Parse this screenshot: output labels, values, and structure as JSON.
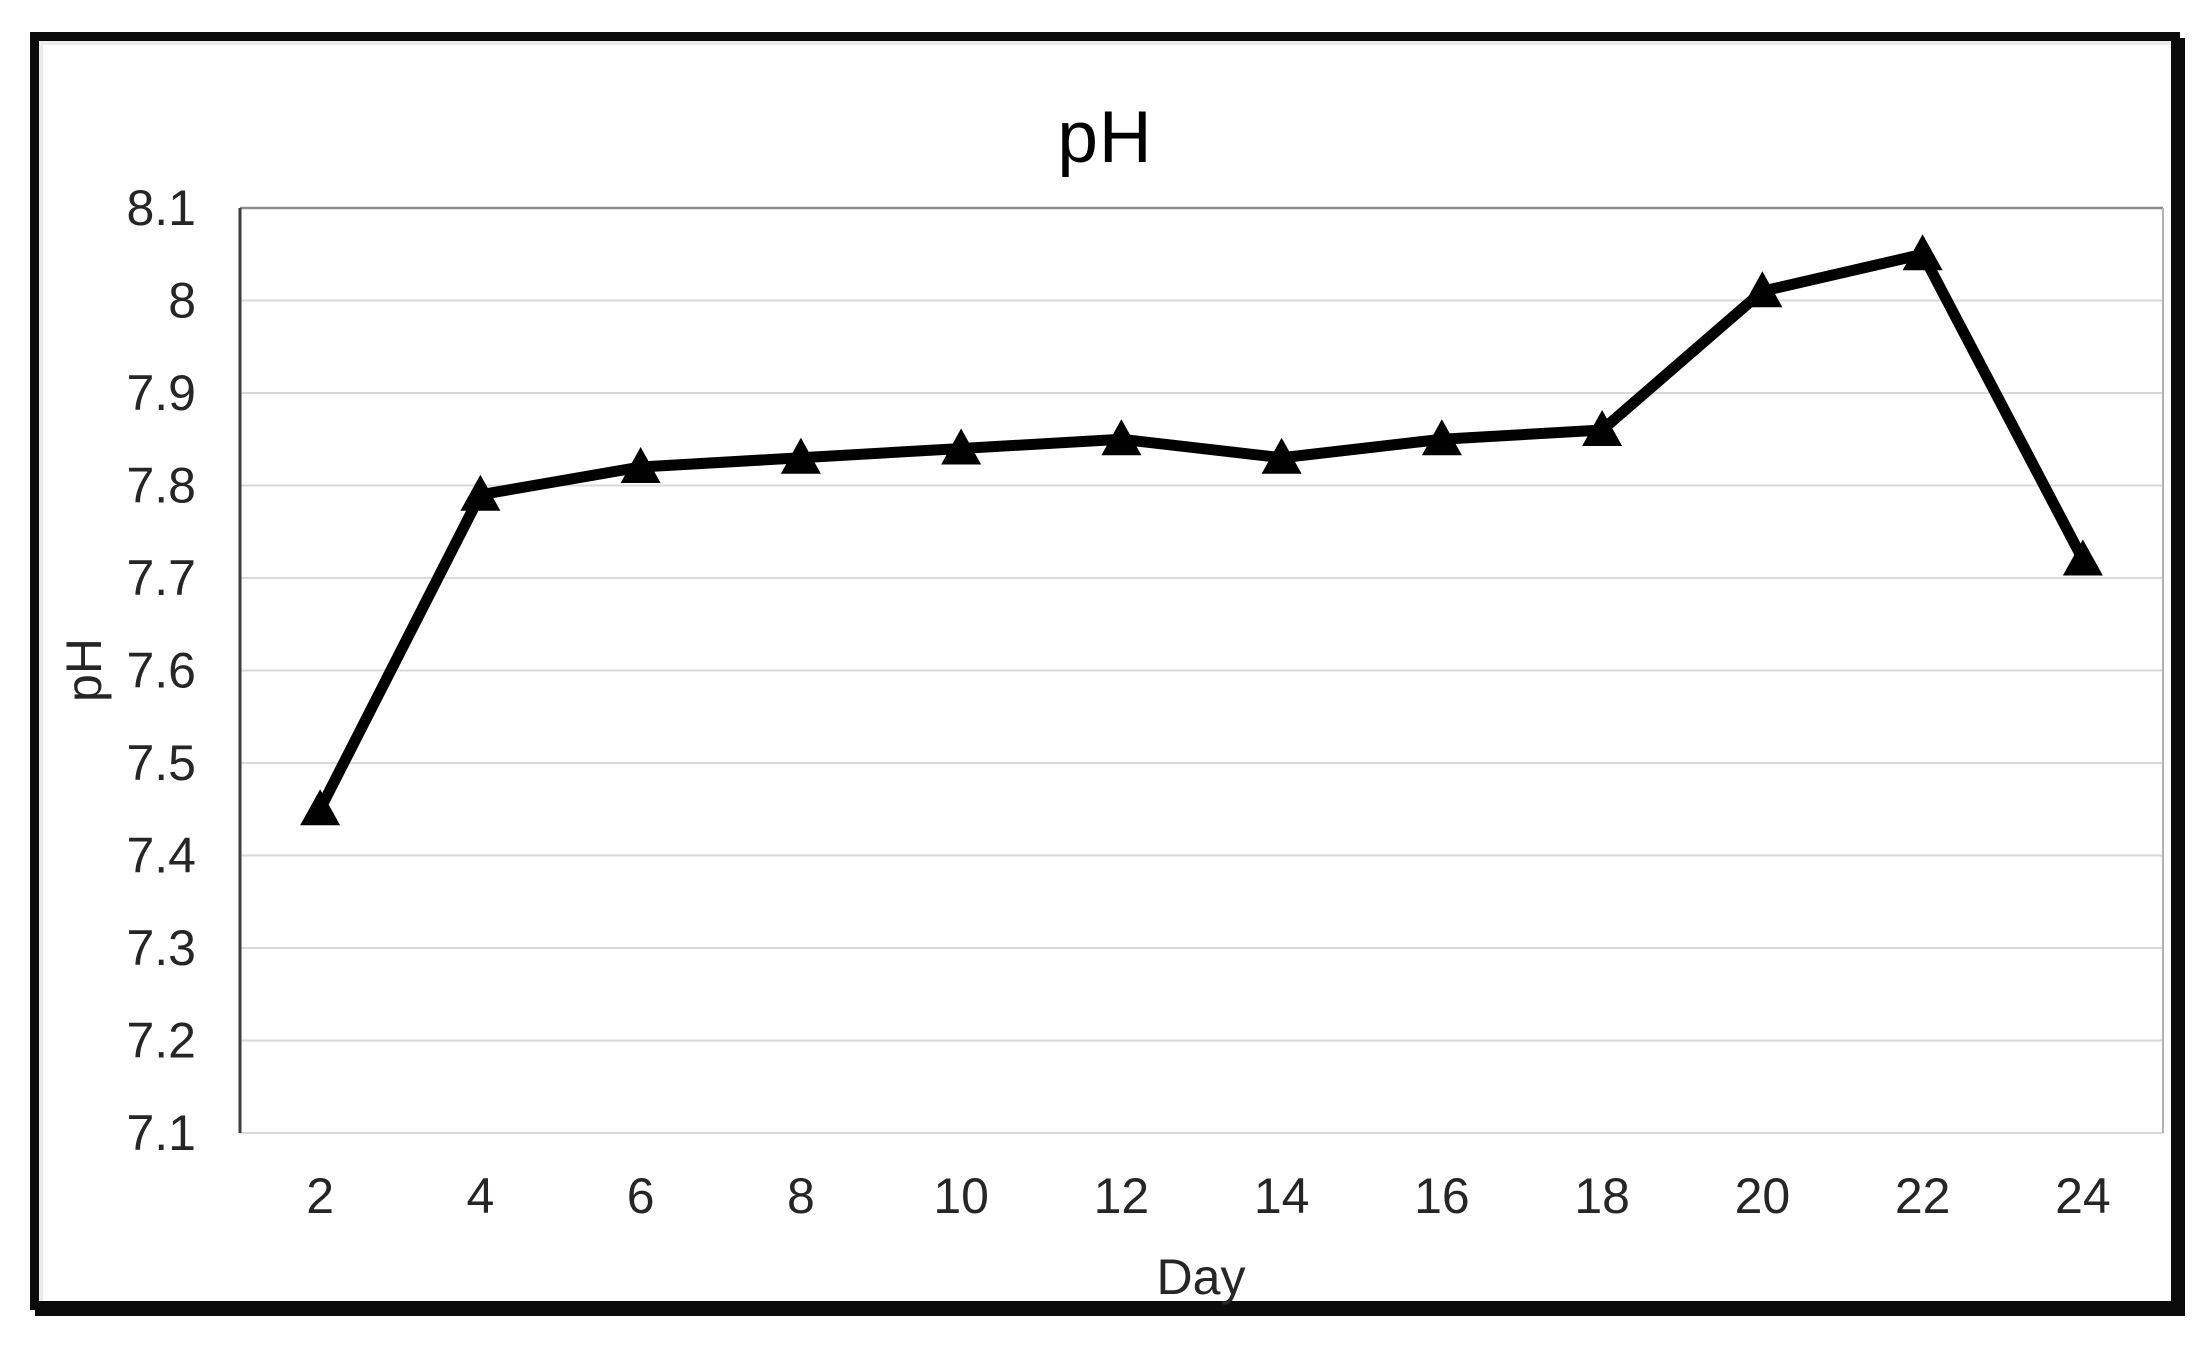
{
  "window": {
    "background": "#ffffff"
  },
  "chart_data": {
    "type": "line",
    "title": "pH",
    "xlabel": "Day",
    "ylabel": "pH",
    "x": [
      2,
      4,
      6,
      8,
      10,
      12,
      14,
      16,
      18,
      20,
      22,
      24
    ],
    "xtick_labels": [
      "2",
      "4",
      "6",
      "8",
      "10",
      "12",
      "14",
      "16",
      "18",
      "20",
      "22",
      "24"
    ],
    "series": [
      {
        "name": "pH",
        "marker": "filled-triangle",
        "color": "#000000",
        "values": [
          7.45,
          7.79,
          7.82,
          7.83,
          7.84,
          7.85,
          7.83,
          7.85,
          7.86,
          8.01,
          8.05,
          7.72
        ]
      }
    ],
    "ylim": [
      7.1,
      8.1
    ],
    "ytick_step": 0.1,
    "ytick_labels_top_to_bottom": [
      "8.1",
      "8",
      "7.9",
      "7.8",
      "7.7",
      "7.6",
      "7.5",
      "7.4",
      "7.3",
      "7.2",
      "7.1"
    ],
    "grid": "horizontal",
    "legend": "none",
    "colors": {
      "series_line": "#000000",
      "gridline": "#d9d9d9",
      "axis_line_left": "#3d3d3d",
      "plot_border_top": "#8f8f8f",
      "plot_border_right": "#b3b3b3",
      "tick_label": "#262626",
      "title_text": "#000000",
      "frame_border": "#0b0b0b"
    }
  }
}
